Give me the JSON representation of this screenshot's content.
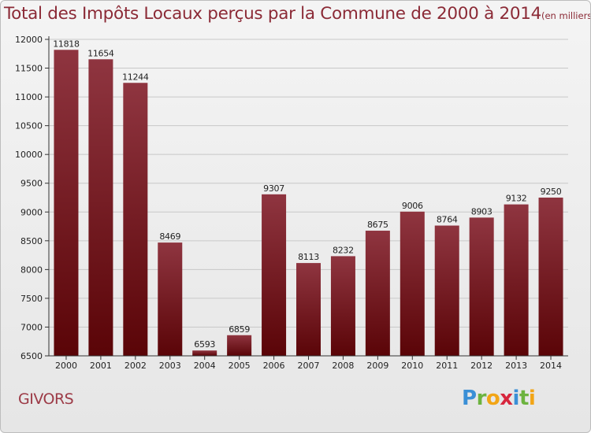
{
  "title": "Total des Impôts Locaux perçus par la Commune de 2000 à 2014",
  "title_unit": "(en milliers d'€)",
  "commune": "GIVORS",
  "logo": {
    "text": "Proxiti",
    "letters": [
      "P",
      "r",
      "o",
      "x",
      "i",
      "t",
      "i"
    ],
    "colors": [
      "#3a8fd6",
      "#6cb33f",
      "#f2a516",
      "#d7263d",
      "#3a8fd6",
      "#6cb33f",
      "#f2a516"
    ]
  },
  "colors": {
    "bar_top": "#8f3540",
    "bar_bottom": "#5a0407",
    "title": "#8b2a36",
    "axis": "#333333",
    "grid": "#c8c8c8"
  },
  "chart_data": {
    "type": "bar",
    "title": "Total des Impôts Locaux perçus par la Commune de 2000 à 2014",
    "xlabel": "",
    "ylabel": "",
    "categories": [
      "2000",
      "2001",
      "2002",
      "2003",
      "2004",
      "2005",
      "2006",
      "2007",
      "2008",
      "2009",
      "2010",
      "2011",
      "2012",
      "2013",
      "2014"
    ],
    "values": [
      11818,
      11654,
      11244,
      8469,
      6593,
      6859,
      9307,
      8113,
      8232,
      8675,
      9006,
      8764,
      8903,
      9132,
      9250
    ],
    "ylim": [
      6500,
      12000
    ],
    "yticks": [
      "6500",
      "7000",
      "7500",
      "8000",
      "8500",
      "9000",
      "9500",
      "10000",
      "10500",
      "11000",
      "11500",
      "12000"
    ],
    "grid": true
  }
}
